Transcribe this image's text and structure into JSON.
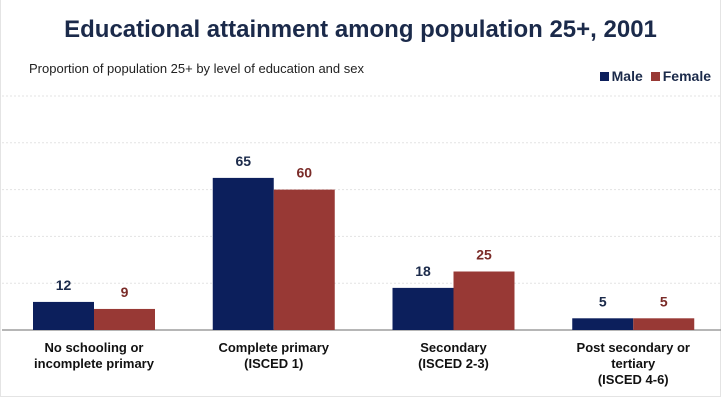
{
  "chart_data": {
    "type": "bar",
    "title": "Educational attainment among population 25+, 2001",
    "subtitle": "Proportion of population 25+ by level of education and sex",
    "categories": [
      [
        "No schooling or",
        "incomplete primary"
      ],
      [
        "Complete primary",
        "(ISCED 1)"
      ],
      [
        "Secondary",
        "(ISCED 2-3)"
      ],
      [
        "Post secondary or",
        "tertiary",
        "(ISCED 4-6)"
      ]
    ],
    "series": [
      {
        "name": "Male",
        "color": "#0c1f5c",
        "values": [
          12,
          65,
          18,
          5
        ]
      },
      {
        "name": "Female",
        "color": "#983935",
        "values": [
          9,
          60,
          25,
          5
        ]
      }
    ],
    "ylim": [
      0,
      100
    ],
    "grid": true,
    "legend_position": "top-right",
    "data_labels": true
  }
}
